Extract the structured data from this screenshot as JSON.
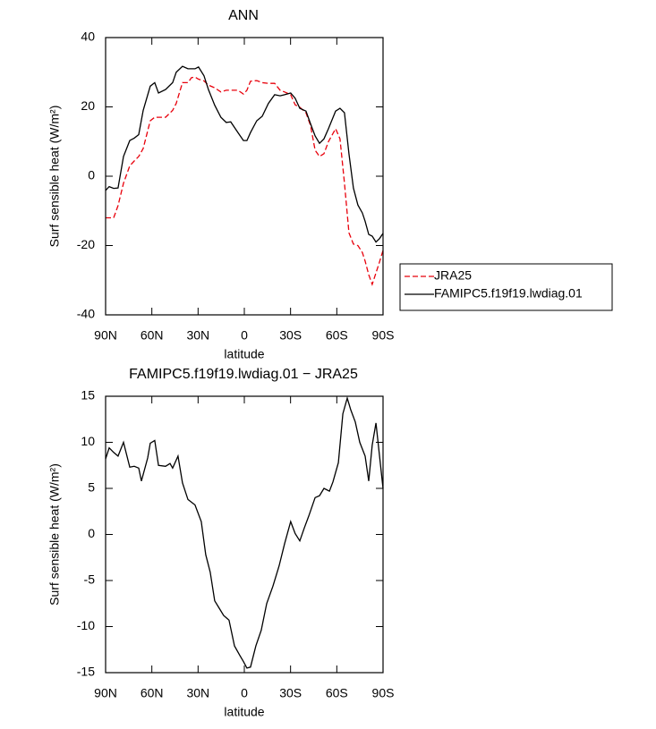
{
  "chart_data": [
    {
      "type": "line",
      "title": "ANN",
      "xlabel": "latitude",
      "ylabel": "Surf sensible heat (W/m²)",
      "x": [
        90,
        87.7,
        84.8,
        81.9,
        78.4,
        74.3,
        71.4,
        68.5,
        65.6,
        61,
        58.1,
        55.7,
        51.1,
        46.5,
        44.2,
        40.1,
        36.6,
        34.3,
        32,
        29.7,
        26.2,
        23.3,
        19.2,
        15.2,
        11.7,
        8.8,
        4.1,
        0.6,
        -1.7,
        -4,
        -8.1,
        -11.6,
        -15.6,
        -19.7,
        -23.2,
        -26.1,
        -30.1,
        -33,
        -36,
        -40,
        -42.9,
        -45.9,
        -48.8,
        -51.7,
        -54.6,
        -59.2,
        -62.1,
        -65,
        -67.9,
        -70.8,
        -73.7,
        -76.6,
        -78.4,
        -80.7,
        -83,
        -85.4,
        -87.7,
        -90
      ],
      "series": [
        {
          "name": "JRA25",
          "color": "#e8000b",
          "linestyle": "dashed",
          "values": [
            -12,
            -12,
            -12,
            -8.5,
            -2,
            3,
            4.4,
            5.7,
            8,
            16,
            17,
            17,
            17,
            19,
            21,
            27,
            27,
            28.4,
            28.6,
            28,
            27.5,
            26.3,
            25.5,
            24.3,
            24.8,
            24.8,
            24.8,
            23.7,
            24.8,
            27.4,
            27.6,
            27,
            26.8,
            26.8,
            24.8,
            24.3,
            23.5,
            20.6,
            19.9,
            18.3,
            14.7,
            7.5,
            5.7,
            6.5,
            10,
            13.7,
            10.8,
            -2,
            -16.3,
            -19.6,
            -20,
            -22,
            -24.5,
            -28.4,
            -31.2,
            -27.9,
            -24.8,
            -21.4
          ]
        },
        {
          "name": "FAMIPC5.f19f19.lwdiag.01",
          "color": "#000000",
          "linestyle": "solid",
          "values": [
            -4.1,
            -3,
            -3.5,
            -3.4,
            5.7,
            10.3,
            11,
            12,
            19,
            26,
            27,
            24,
            25,
            27,
            30,
            31.7,
            31,
            31,
            31,
            31.5,
            29,
            25,
            20.5,
            17,
            15.5,
            15.7,
            12.6,
            10.3,
            10.3,
            12.6,
            16,
            17.3,
            21,
            23.5,
            23.2,
            23.5,
            24,
            22.5,
            19.6,
            18.8,
            15.2,
            11.6,
            9.5,
            10.8,
            13.7,
            18.8,
            19.6,
            18.3,
            6.5,
            -3.4,
            -8.3,
            -10.6,
            -13,
            -16.8,
            -17.3,
            -19,
            -18,
            -16.5
          ]
        }
      ],
      "xlim": [
        90,
        -90
      ],
      "xticks": [
        {
          "value": 90,
          "label": "90N"
        },
        {
          "value": 60,
          "label": "60N"
        },
        {
          "value": 30,
          "label": "30N"
        },
        0,
        {
          "value": -30,
          "label": "30S"
        },
        {
          "value": -60,
          "label": "60S"
        },
        {
          "value": -90,
          "label": "90S"
        }
      ],
      "ylim": [
        -40,
        40
      ],
      "yticks": [
        -40,
        -20,
        0,
        20,
        40
      ],
      "legend": "outside right"
    },
    {
      "type": "line",
      "title": "FAMIPC5.f19f19.lwdiag.01 − JRA25",
      "xlabel": "latitude",
      "ylabel": "Surf sensible heat (W/m²)",
      "x": [
        90,
        87.7,
        84.8,
        81.9,
        78.4,
        74.3,
        71.4,
        68.5,
        66.8,
        62.7,
        61,
        58.1,
        55.7,
        51.1,
        48.2,
        46.5,
        43,
        40.1,
        36.6,
        32,
        27.9,
        25,
        22.1,
        19.2,
        16.3,
        13.4,
        9.9,
        6.4,
        3,
        0.6,
        -1.7,
        -4,
        -7.5,
        -11,
        -14.5,
        -18.6,
        -22.6,
        -26.1,
        -30.1,
        -33,
        -36,
        -38.9,
        -41.8,
        -45.9,
        -48.8,
        -51.7,
        -55.2,
        -57.5,
        -61,
        -63.9,
        -66.8,
        -69.1,
        -72,
        -74.9,
        -78.4,
        -80.7,
        -83,
        -85.4,
        -90
      ],
      "values": [
        8.2,
        9.4,
        8.9,
        8.5,
        10,
        7.3,
        7.4,
        7.2,
        5.8,
        8.3,
        9.9,
        10.2,
        7.5,
        7.4,
        7.7,
        7.2,
        8.5,
        5.6,
        3.8,
        3.2,
        1.4,
        -2.2,
        -4.1,
        -7.2,
        -8,
        -8.8,
        -9.3,
        -12.1,
        -13.1,
        -13.8,
        -14.5,
        -14.4,
        -12.1,
        -10.4,
        -7.5,
        -5.6,
        -3.4,
        -1,
        1.4,
        0.1,
        -0.7,
        0.7,
        2,
        4,
        4.2,
        5,
        4.7,
        5.7,
        7.8,
        13.1,
        14.8,
        13.5,
        12.2,
        10,
        8.5,
        5.8,
        9.7,
        12.1,
        5
      ],
      "color": "#000000",
      "linestyle": "solid",
      "xlim": [
        90,
        -90
      ],
      "xticks": [
        {
          "value": 90,
          "label": "90N"
        },
        {
          "value": 60,
          "label": "60N"
        },
        {
          "value": 30,
          "label": "30N"
        },
        0,
        {
          "value": -30,
          "label": "30S"
        },
        {
          "value": -60,
          "label": "60S"
        },
        {
          "value": -90,
          "label": "90S"
        }
      ],
      "ylim": [
        -15,
        15
      ],
      "yticks": [
        -15,
        -10,
        -5,
        0,
        5,
        10,
        15
      ]
    }
  ]
}
